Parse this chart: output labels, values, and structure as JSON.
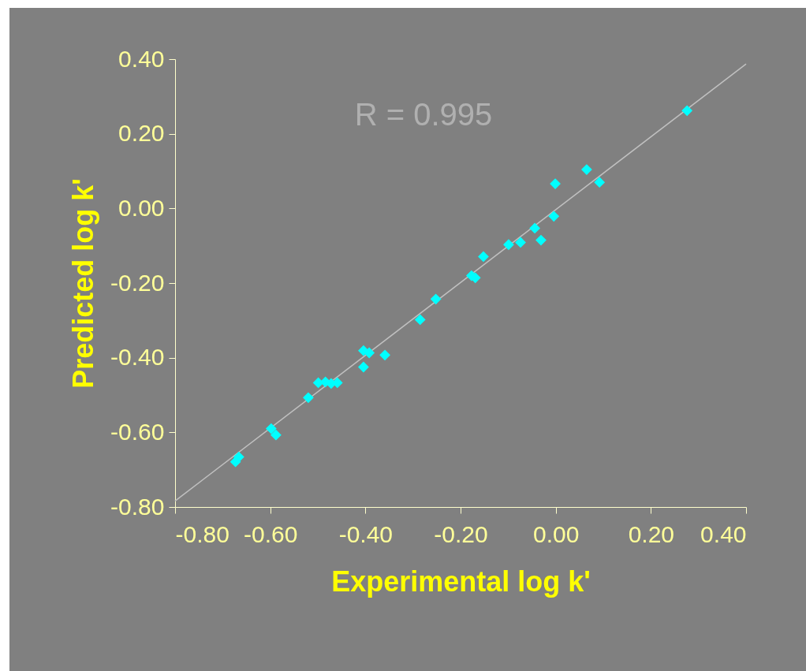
{
  "chart_data": {
    "type": "scatter",
    "xlabel": "Experimental  log k'",
    "ylabel": "Predicted log k'",
    "annotations": [
      "R = 0.995"
    ],
    "xlim": [
      -0.8,
      0.4
    ],
    "ylim": [
      -0.8,
      0.4
    ],
    "xticks": [
      {
        "value": -0.8,
        "label": "-0.80"
      },
      {
        "value": -0.6,
        "label": "-0.60"
      },
      {
        "value": -0.4,
        "label": "-0.40"
      },
      {
        "value": -0.2,
        "label": "-0.20"
      },
      {
        "value": 0,
        "label": "0.00"
      },
      {
        "value": 0.2,
        "label": "0.20"
      },
      {
        "value": 0.4,
        "label": "0.40"
      }
    ],
    "yticks": [
      {
        "value": -0.8,
        "label": "-0.80"
      },
      {
        "value": -0.6,
        "label": "-0.60"
      },
      {
        "value": -0.4,
        "label": "-0.40"
      },
      {
        "value": -0.2,
        "label": "-0.20"
      },
      {
        "value": 0,
        "label": "0.00"
      },
      {
        "value": 0.2,
        "label": "0.20"
      },
      {
        "value": 0.4,
        "label": "0.40"
      }
    ],
    "grid": false,
    "series": [
      {
        "color": "#00ffff",
        "marker": "diamond",
        "x": [
          -0.673,
          -0.666,
          -0.598,
          -0.588,
          -0.52,
          -0.499,
          -0.484,
          -0.472,
          -0.459,
          -0.404,
          -0.404,
          -0.392,
          -0.359,
          -0.285,
          -0.252,
          -0.177,
          -0.169,
          -0.152,
          -0.099,
          -0.074,
          -0.044,
          -0.031,
          -0.004,
          -0.001,
          0.065,
          0.092,
          0.276
        ],
        "values": [
          -0.679,
          -0.666,
          -0.59,
          -0.607,
          -0.507,
          -0.467,
          -0.465,
          -0.469,
          -0.467,
          -0.381,
          -0.425,
          -0.387,
          -0.393,
          -0.298,
          -0.243,
          -0.18,
          -0.186,
          -0.129,
          -0.097,
          -0.091,
          -0.053,
          -0.085,
          -0.021,
          0.066,
          0.104,
          0.07,
          0.262
        ]
      },
      {
        "type": "line",
        "color": "#c0c0c0",
        "line_style": "solid",
        "x": [
          -0.8,
          0.4
        ],
        "values": [
          -0.784,
          0.387
        ]
      }
    ]
  }
}
